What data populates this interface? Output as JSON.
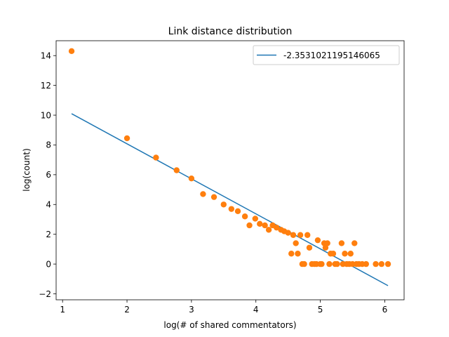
{
  "chart_data": {
    "type": "scatter",
    "title": "Link distance distribution",
    "xlabel": "log(# of shared commentators)",
    "ylabel": "log(count)",
    "xlim": [
      0.9,
      6.3
    ],
    "ylim": [
      -2.4,
      15.0
    ],
    "xticks": [
      1,
      2,
      3,
      4,
      5,
      6
    ],
    "yticks": [
      -2,
      0,
      2,
      4,
      6,
      8,
      10,
      12,
      14
    ],
    "grid": false,
    "legend_position": "top-right",
    "colors": {
      "fit_line": "#1f77b4",
      "points": "#ff7f0e"
    },
    "fit_line": {
      "name": "-2.3531021195146065",
      "x": [
        1.14,
        6.05
      ],
      "y": [
        10.1,
        -1.45
      ]
    },
    "points": {
      "x": [
        1.14,
        2.0,
        2.45,
        2.77,
        3.0,
        3.18,
        3.35,
        3.5,
        3.62,
        3.72,
        3.83,
        3.9,
        3.99,
        4.06,
        4.14,
        4.2,
        4.26,
        4.32,
        4.39,
        4.44,
        4.5,
        4.55,
        4.58,
        4.62,
        4.65,
        4.69,
        4.72,
        4.75,
        4.8,
        4.83,
        4.87,
        4.91,
        4.94,
        4.96,
        5.0,
        5.02,
        5.06,
        5.08,
        5.11,
        5.14,
        5.16,
        5.2,
        5.23,
        5.26,
        5.33,
        5.35,
        5.38,
        5.41,
        5.45,
        5.47,
        5.5,
        5.53,
        5.56,
        5.6,
        5.65,
        5.71,
        5.86,
        5.95,
        6.05
      ],
      "y": [
        14.3,
        8.45,
        7.15,
        6.3,
        5.75,
        4.7,
        4.5,
        4.0,
        3.7,
        3.55,
        3.2,
        2.6,
        3.05,
        2.7,
        2.6,
        2.3,
        2.6,
        2.45,
        2.3,
        2.2,
        2.1,
        0.7,
        1.95,
        1.4,
        0.7,
        1.95,
        0.0,
        0.0,
        1.95,
        1.1,
        0.0,
        0.0,
        0.0,
        1.6,
        0.0,
        0.0,
        1.4,
        1.1,
        1.4,
        0.0,
        0.7,
        0.7,
        0.0,
        0.0,
        1.4,
        0.0,
        0.7,
        0.0,
        0.0,
        0.7,
        0.0,
        1.4,
        0.0,
        0.0,
        0.0,
        0.0,
        0.0,
        0.0,
        0.0
      ]
    }
  }
}
